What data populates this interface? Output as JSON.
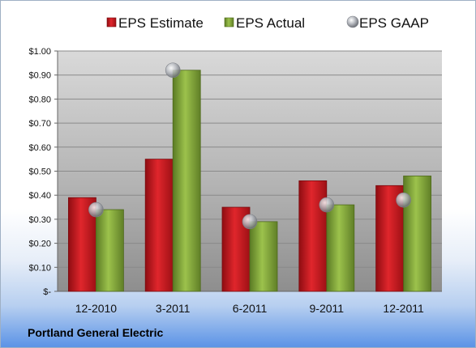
{
  "company": "Portland General Electric",
  "chart_data": {
    "type": "bar",
    "categories": [
      "12-2010",
      "3-2011",
      "6-2011",
      "9-2011",
      "12-2011"
    ],
    "series": [
      {
        "name": "EPS Estimate",
        "kind": "bar",
        "color": "#c8191f",
        "values": [
          0.39,
          0.55,
          0.35,
          0.46,
          0.44
        ]
      },
      {
        "name": "EPS Actual",
        "kind": "bar",
        "color": "#7fa33a",
        "values": [
          0.34,
          0.92,
          0.29,
          0.36,
          0.48
        ]
      },
      {
        "name": "EPS GAAP",
        "kind": "marker",
        "color": "#b9bcc2",
        "values": [
          0.34,
          0.92,
          0.29,
          0.36,
          0.38
        ]
      }
    ],
    "yticks": [
      "$-",
      "$0.10",
      "$0.20",
      "$0.30",
      "$0.40",
      "$0.50",
      "$0.60",
      "$0.70",
      "$0.80",
      "$0.90",
      "$1.00"
    ],
    "ylim": [
      0,
      1.0
    ],
    "grid": true,
    "legend": "top"
  }
}
